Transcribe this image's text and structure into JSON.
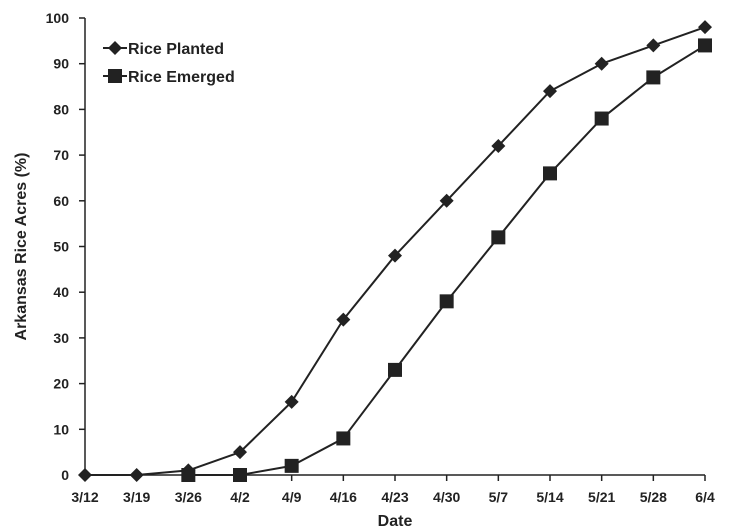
{
  "chart_data": {
    "type": "line",
    "title": "",
    "xlabel": "Date",
    "ylabel": "Arkansas Rice Acres (%)",
    "categories": [
      "3/12",
      "3/19",
      "3/26",
      "4/2",
      "4/9",
      "4/16",
      "4/23",
      "4/30",
      "5/7",
      "5/14",
      "5/21",
      "5/28",
      "6/4"
    ],
    "ylim": [
      0,
      100
    ],
    "yticks": [
      0,
      10,
      20,
      30,
      40,
      50,
      60,
      70,
      80,
      90,
      100
    ],
    "grid": false,
    "legend_position": "top-left",
    "series": [
      {
        "name": "Rice Planted",
        "marker": "diamond",
        "color": "#222222",
        "values": [
          0,
          0,
          1,
          5,
          16,
          34,
          48,
          60,
          72,
          84,
          90,
          94,
          98
        ]
      },
      {
        "name": "Rice Emerged",
        "marker": "square",
        "color": "#222222",
        "values": [
          null,
          null,
          0,
          0,
          2,
          8,
          23,
          38,
          52,
          66,
          78,
          87,
          94
        ]
      }
    ]
  }
}
